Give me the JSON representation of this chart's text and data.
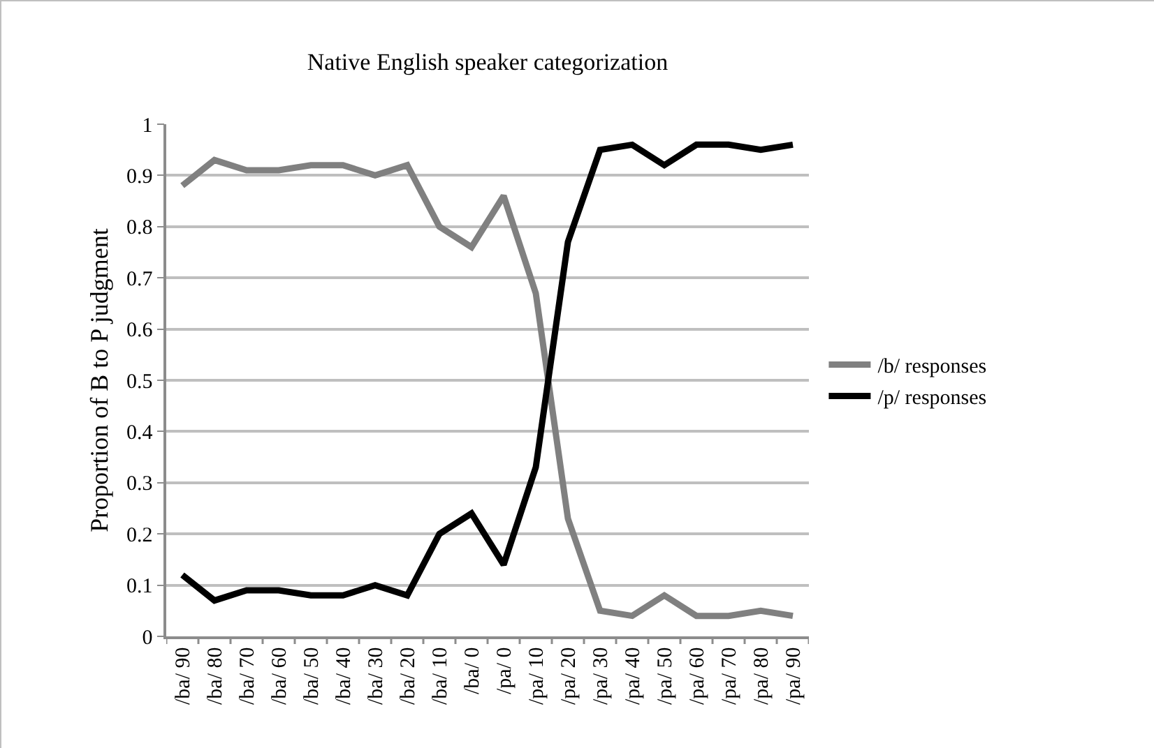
{
  "chart_data": {
    "type": "line",
    "title": "Native English speaker categorization",
    "ylabel": "Proportion of B to P judgment",
    "categories": [
      "/ba/ 90",
      "/ba/ 80",
      "/ba/ 70",
      "/ba/ 60",
      "/ba/ 50",
      "/ba/ 40",
      "/ba/ 30",
      "/ba/ 20",
      "/ba/ 10",
      "/ba/ 0",
      "/pa/ 0",
      "/pa/ 10",
      "/pa/ 20",
      "/pa/ 30",
      "/pa/ 40",
      "/pa/ 50",
      "/pa/ 60",
      "/pa/ 70",
      "/pa/ 80",
      "/pa/ 90"
    ],
    "series": [
      {
        "name": "/b/ responses",
        "color": "#808080",
        "values": [
          0.88,
          0.93,
          0.91,
          0.91,
          0.92,
          0.92,
          0.9,
          0.92,
          0.8,
          0.76,
          0.86,
          0.67,
          0.23,
          0.05,
          0.04,
          0.08,
          0.04,
          0.04,
          0.05,
          0.04
        ]
      },
      {
        "name": "/p/ responses",
        "color": "#000000",
        "values": [
          0.12,
          0.07,
          0.09,
          0.09,
          0.08,
          0.08,
          0.1,
          0.08,
          0.2,
          0.24,
          0.14,
          0.33,
          0.77,
          0.95,
          0.96,
          0.92,
          0.96,
          0.96,
          0.95,
          0.96
        ]
      }
    ],
    "ylim": [
      0,
      1
    ],
    "yticks": [
      0,
      0.1,
      0.2,
      0.3,
      0.4,
      0.5,
      0.6,
      0.7,
      0.8,
      0.9,
      1
    ],
    "grid": "y",
    "legend": "right",
    "marker": "none",
    "line_style": "solid"
  }
}
